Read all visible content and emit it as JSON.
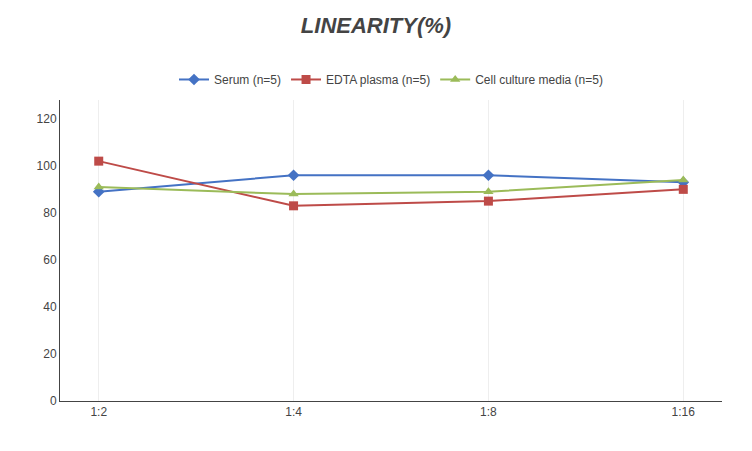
{
  "chart_data": {
    "type": "line",
    "title": "LINEARITY(%)",
    "categories": [
      "1:2",
      "1:4",
      "1:8",
      "1:16"
    ],
    "series": [
      {
        "name": "Serum (n=5)",
        "color": "#4472C4",
        "marker": "diamond",
        "values": [
          89,
          96,
          96,
          93
        ]
      },
      {
        "name": "EDTA plasma (n=5)",
        "color": "#BE4B48",
        "marker": "square",
        "values": [
          102,
          83,
          85,
          90
        ]
      },
      {
        "name": "Cell culture media (n=5)",
        "color": "#9BBB59",
        "marker": "triangle-up",
        "values": [
          91,
          88,
          89,
          94
        ]
      }
    ],
    "ylim": [
      0,
      128
    ],
    "yticks": [
      0,
      20,
      40,
      60,
      80,
      100,
      120
    ],
    "grid": "x",
    "legend": "top"
  }
}
